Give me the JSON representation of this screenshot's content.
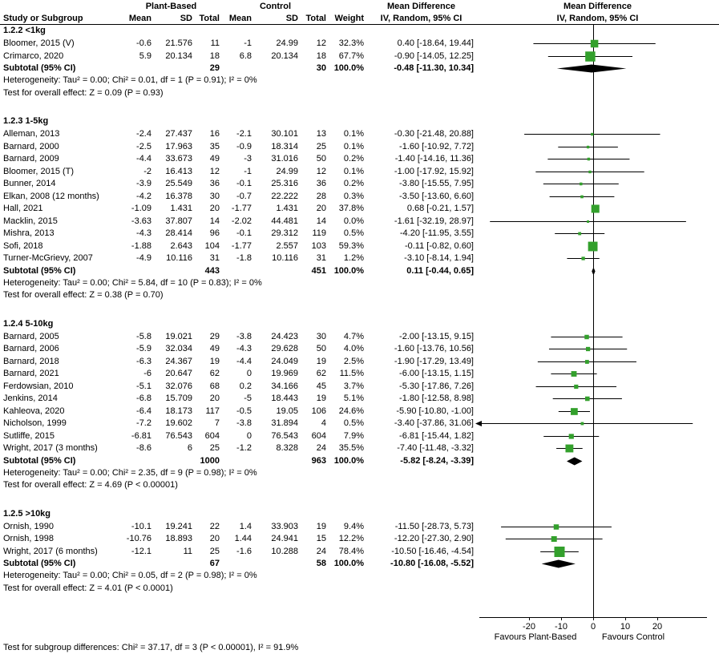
{
  "header": {
    "plant_based": "Plant-Based",
    "control": "Control",
    "mean_difference": "Mean Difference",
    "col_study": "Study or Subgroup",
    "col_mean": "Mean",
    "col_sd": "SD",
    "col_total": "Total",
    "col_weight": "Weight",
    "col_ci": "IV, Random, 95% CI"
  },
  "footer": {
    "subgroup_diff": "Test for subgroup differences: Chi² = 37.17, df = 3 (P < 0.00001), I² = 91.9%"
  },
  "chart_data": {
    "type": "forest",
    "effect_measure": "Mean Difference",
    "method": "IV, Random, 95% CI",
    "axis": {
      "ticks": [
        -20,
        -10,
        0,
        10,
        20
      ],
      "xmin": -35.5,
      "xmax": 35.5,
      "favours_left": "Favours Plant-Based",
      "favours_right": "Favours Control"
    },
    "style": {
      "marker_color": "#33A02C",
      "diamond_color": "#000000",
      "line_color": "#000000"
    },
    "groups": [
      {
        "label": "1.2.2 <1kg",
        "studies": [
          {
            "name": "Bloomer, 2015 (V)",
            "p_mean": "-0.6",
            "p_sd": "21.576",
            "p_total": "11",
            "c_mean": "-1",
            "c_sd": "24.99",
            "c_total": "12",
            "weight": "32.3%",
            "est": 0.4,
            "lo": -18.64,
            "hi": 19.44,
            "ci": "0.40 [-18.64, 19.44]"
          },
          {
            "name": "Crimarco, 2020",
            "p_mean": "5.9",
            "p_sd": "20.134",
            "p_total": "18",
            "c_mean": "6.8",
            "c_sd": "20.134",
            "c_total": "18",
            "weight": "67.7%",
            "est": -0.9,
            "lo": -14.05,
            "hi": 12.25,
            "ci": "-0.90 [-14.05, 12.25]"
          }
        ],
        "subtotal": {
          "label": "Subtotal (95% CI)",
          "p_total": "29",
          "c_total": "30",
          "weight": "100.0%",
          "est": -0.48,
          "lo": -11.3,
          "hi": 10.34,
          "ci": "-0.48 [-11.30, 10.34]"
        },
        "heterogeneity": "Heterogeneity: Tau² = 0.00; Chi² = 0.01, df = 1 (P = 0.91); I² = 0%",
        "overall_effect": "Test for overall effect: Z = 0.09 (P = 0.93)"
      },
      {
        "label": "1.2.3 1-5kg",
        "studies": [
          {
            "name": "Alleman, 2013",
            "p_mean": "-2.4",
            "p_sd": "27.437",
            "p_total": "16",
            "c_mean": "-2.1",
            "c_sd": "30.101",
            "c_total": "13",
            "weight": "0.1%",
            "est": -0.3,
            "lo": -21.48,
            "hi": 20.88,
            "ci": "-0.30 [-21.48, 20.88]"
          },
          {
            "name": "Barnard, 2000",
            "p_mean": "-2.5",
            "p_sd": "17.963",
            "p_total": "35",
            "c_mean": "-0.9",
            "c_sd": "18.314",
            "c_total": "25",
            "weight": "0.1%",
            "est": -1.6,
            "lo": -10.92,
            "hi": 7.72,
            "ci": "-1.60 [-10.92, 7.72]"
          },
          {
            "name": "Barnard, 2009",
            "p_mean": "-4.4",
            "p_sd": "33.673",
            "p_total": "49",
            "c_mean": "-3",
            "c_sd": "31.016",
            "c_total": "50",
            "weight": "0.2%",
            "est": -1.4,
            "lo": -14.16,
            "hi": 11.36,
            "ci": "-1.40 [-14.16, 11.36]"
          },
          {
            "name": "Bloomer, 2015 (T)",
            "p_mean": "-2",
            "p_sd": "16.413",
            "p_total": "12",
            "c_mean": "-1",
            "c_sd": "24.99",
            "c_total": "12",
            "weight": "0.1%",
            "est": -1.0,
            "lo": -17.92,
            "hi": 15.92,
            "ci": "-1.00 [-17.92, 15.92]"
          },
          {
            "name": "Bunner, 2014",
            "p_mean": "-3.9",
            "p_sd": "25.549",
            "p_total": "36",
            "c_mean": "-0.1",
            "c_sd": "25.316",
            "c_total": "36",
            "weight": "0.2%",
            "est": -3.8,
            "lo": -15.55,
            "hi": 7.95,
            "ci": "-3.80 [-15.55, 7.95]"
          },
          {
            "name": "Elkan, 2008 (12 months)",
            "p_mean": "-4.2",
            "p_sd": "16.378",
            "p_total": "30",
            "c_mean": "-0.7",
            "c_sd": "22.222",
            "c_total": "28",
            "weight": "0.3%",
            "est": -3.5,
            "lo": -13.6,
            "hi": 6.6,
            "ci": "-3.50 [-13.60, 6.60]"
          },
          {
            "name": "Hall, 2021",
            "p_mean": "-1.09",
            "p_sd": "1.431",
            "p_total": "20",
            "c_mean": "-1.77",
            "c_sd": "1.431",
            "c_total": "20",
            "weight": "37.8%",
            "est": 0.68,
            "lo": -0.21,
            "hi": 1.57,
            "ci": "0.68 [-0.21, 1.57]"
          },
          {
            "name": "Macklin, 2015",
            "p_mean": "-3.63",
            "p_sd": "37.807",
            "p_total": "14",
            "c_mean": "-2.02",
            "c_sd": "44.481",
            "c_total": "14",
            "weight": "0.0%",
            "est": -1.61,
            "lo": -32.19,
            "hi": 28.97,
            "ci": "-1.61 [-32.19, 28.97]"
          },
          {
            "name": "Mishra, 2013",
            "p_mean": "-4.3",
            "p_sd": "28.414",
            "p_total": "96",
            "c_mean": "-0.1",
            "c_sd": "29.312",
            "c_total": "119",
            "weight": "0.5%",
            "est": -4.2,
            "lo": -11.95,
            "hi": 3.55,
            "ci": "-4.20 [-11.95, 3.55]"
          },
          {
            "name": "Sofi, 2018",
            "p_mean": "-1.88",
            "p_sd": "2.643",
            "p_total": "104",
            "c_mean": "-1.77",
            "c_sd": "2.557",
            "c_total": "103",
            "weight": "59.3%",
            "est": -0.11,
            "lo": -0.82,
            "hi": 0.6,
            "ci": "-0.11 [-0.82, 0.60]"
          },
          {
            "name": "Turner-McGrievy, 2007",
            "p_mean": "-4.9",
            "p_sd": "10.116",
            "p_total": "31",
            "c_mean": "-1.8",
            "c_sd": "10.116",
            "c_total": "31",
            "weight": "1.2%",
            "est": -3.1,
            "lo": -8.14,
            "hi": 1.94,
            "ci": "-3.10 [-8.14, 1.94]"
          }
        ],
        "subtotal": {
          "label": "Subtotal (95% CI)",
          "p_total": "443",
          "c_total": "451",
          "weight": "100.0%",
          "est": 0.11,
          "lo": -0.44,
          "hi": 0.65,
          "ci": "0.11 [-0.44, 0.65]"
        },
        "heterogeneity": "Heterogeneity: Tau² = 0.00; Chi² = 5.84, df = 10 (P = 0.83); I² = 0%",
        "overall_effect": "Test for overall effect: Z = 0.38 (P = 0.70)"
      },
      {
        "label": "1.2.4 5-10kg",
        "studies": [
          {
            "name": "Barnard, 2005",
            "p_mean": "-5.8",
            "p_sd": "19.021",
            "p_total": "29",
            "c_mean": "-3.8",
            "c_sd": "24.423",
            "c_total": "30",
            "weight": "4.7%",
            "est": -2.0,
            "lo": -13.15,
            "hi": 9.15,
            "ci": "-2.00 [-13.15, 9.15]"
          },
          {
            "name": "Barnard, 2006",
            "p_mean": "-5.9",
            "p_sd": "32.034",
            "p_total": "49",
            "c_mean": "-4.3",
            "c_sd": "29.628",
            "c_total": "50",
            "weight": "4.0%",
            "est": -1.6,
            "lo": -13.76,
            "hi": 10.56,
            "ci": "-1.60 [-13.76, 10.56]"
          },
          {
            "name": "Barnard, 2018",
            "p_mean": "-6.3",
            "p_sd": "24.367",
            "p_total": "19",
            "c_mean": "-4.4",
            "c_sd": "24.049",
            "c_total": "19",
            "weight": "2.5%",
            "est": -1.9,
            "lo": -17.29,
            "hi": 13.49,
            "ci": "-1.90 [-17.29, 13.49]"
          },
          {
            "name": "Barnard, 2021",
            "p_mean": "-6",
            "p_sd": "20.647",
            "p_total": "62",
            "c_mean": "0",
            "c_sd": "19.969",
            "c_total": "62",
            "weight": "11.5%",
            "est": -6.0,
            "lo": -13.15,
            "hi": 1.15,
            "ci": "-6.00 [-13.15, 1.15]"
          },
          {
            "name": "Ferdowsian, 2010",
            "p_mean": "-5.1",
            "p_sd": "32.076",
            "p_total": "68",
            "c_mean": "0.2",
            "c_sd": "34.166",
            "c_total": "45",
            "weight": "3.7%",
            "est": -5.3,
            "lo": -17.86,
            "hi": 7.26,
            "ci": "-5.30 [-17.86, 7.26]"
          },
          {
            "name": "Jenkins, 2014",
            "p_mean": "-6.8",
            "p_sd": "15.709",
            "p_total": "20",
            "c_mean": "-5",
            "c_sd": "18.443",
            "c_total": "19",
            "weight": "5.1%",
            "est": -1.8,
            "lo": -12.58,
            "hi": 8.98,
            "ci": "-1.80 [-12.58, 8.98]"
          },
          {
            "name": "Kahleova, 2020",
            "p_mean": "-6.4",
            "p_sd": "18.173",
            "p_total": "117",
            "c_mean": "-0.5",
            "c_sd": "19.05",
            "c_total": "106",
            "weight": "24.6%",
            "est": -5.9,
            "lo": -10.8,
            "hi": -1.0,
            "ci": "-5.90 [-10.80, -1.00]"
          },
          {
            "name": "Nicholson, 1999",
            "p_mean": "-7.2",
            "p_sd": "19.602",
            "p_total": "7",
            "c_mean": "-3.8",
            "c_sd": "31.894",
            "c_total": "4",
            "weight": "0.5%",
            "est": -3.4,
            "lo": -37.86,
            "hi": 31.06,
            "ci": "-3.40 [-37.86, 31.06]"
          },
          {
            "name": "Sutliffe, 2015",
            "p_mean": "-6.81",
            "p_sd": "76.543",
            "p_total": "604",
            "c_mean": "0",
            "c_sd": "76.543",
            "c_total": "604",
            "weight": "7.9%",
            "est": -6.81,
            "lo": -15.44,
            "hi": 1.82,
            "ci": "-6.81 [-15.44, 1.82]"
          },
          {
            "name": "Wright, 2017 (3 months)",
            "p_mean": "-8.6",
            "p_sd": "6",
            "p_total": "25",
            "c_mean": "-1.2",
            "c_sd": "8.328",
            "c_total": "24",
            "weight": "35.5%",
            "est": -7.4,
            "lo": -11.48,
            "hi": -3.32,
            "ci": "-7.40 [-11.48, -3.32]"
          }
        ],
        "subtotal": {
          "label": "Subtotal (95% CI)",
          "p_total": "1000",
          "c_total": "963",
          "weight": "100.0%",
          "est": -5.82,
          "lo": -8.24,
          "hi": -3.39,
          "ci": "-5.82 [-8.24, -3.39]"
        },
        "heterogeneity": "Heterogeneity: Tau² = 0.00; Chi² = 2.35, df = 9 (P = 0.98); I² = 0%",
        "overall_effect": "Test for overall effect: Z = 4.69 (P < 0.00001)"
      },
      {
        "label": "1.2.5 >10kg",
        "studies": [
          {
            "name": "Ornish, 1990",
            "p_mean": "-10.1",
            "p_sd": "19.241",
            "p_total": "22",
            "c_mean": "1.4",
            "c_sd": "33.903",
            "c_total": "19",
            "weight": "9.4%",
            "est": -11.5,
            "lo": -28.73,
            "hi": 5.73,
            "ci": "-11.50 [-28.73, 5.73]"
          },
          {
            "name": "Ornish, 1998",
            "p_mean": "-10.76",
            "p_sd": "18.893",
            "p_total": "20",
            "c_mean": "1.44",
            "c_sd": "24.941",
            "c_total": "15",
            "weight": "12.2%",
            "est": -12.2,
            "lo": -27.3,
            "hi": 2.9,
            "ci": "-12.20 [-27.30, 2.90]"
          },
          {
            "name": "Wright, 2017 (6 months)",
            "p_mean": "-12.1",
            "p_sd": "11",
            "p_total": "25",
            "c_mean": "-1.6",
            "c_sd": "10.288",
            "c_total": "24",
            "weight": "78.4%",
            "est": -10.5,
            "lo": -16.46,
            "hi": -4.54,
            "ci": "-10.50 [-16.46, -4.54]"
          }
        ],
        "subtotal": {
          "label": "Subtotal (95% CI)",
          "p_total": "67",
          "c_total": "58",
          "weight": "100.0%",
          "est": -10.8,
          "lo": -16.08,
          "hi": -5.52,
          "ci": "-10.80 [-16.08, -5.52]"
        },
        "heterogeneity": "Heterogeneity: Tau² = 0.00; Chi² = 0.05, df = 2 (P = 0.98); I² = 0%",
        "overall_effect": "Test for overall effect: Z = 4.01 (P < 0.0001)"
      }
    ]
  }
}
